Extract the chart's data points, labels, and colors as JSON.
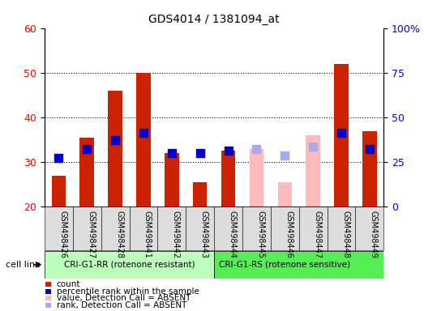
{
  "title": "GDS4014 / 1381094_at",
  "samples": [
    "GSM498426",
    "GSM498427",
    "GSM498428",
    "GSM498441",
    "GSM498442",
    "GSM498443",
    "GSM498444",
    "GSM498445",
    "GSM498446",
    "GSM498447",
    "GSM498448",
    "GSM498449"
  ],
  "group1_label": "CRI-G1-RR (rotenone resistant)",
  "group2_label": "CRI-G1-RS (rotenone sensitive)",
  "cell_line_label": "cell line",
  "count_values": [
    27,
    35.5,
    46,
    50,
    32,
    25.5,
    32.5,
    33,
    25.5,
    36,
    52,
    37
  ],
  "rank_values": [
    31,
    33,
    35,
    36.5,
    32,
    32,
    32.5,
    33,
    31.5,
    33.5,
    36.5,
    33
  ],
  "absent_flags": [
    false,
    false,
    false,
    false,
    false,
    false,
    false,
    true,
    true,
    true,
    false,
    false
  ],
  "ylim_left": [
    20,
    60
  ],
  "ylim_right": [
    0,
    100
  ],
  "yticks_left": [
    20,
    30,
    40,
    50,
    60
  ],
  "yticks_right": [
    0,
    25,
    50,
    75,
    100
  ],
  "ytick_labels_right": [
    "0",
    "25",
    "50",
    "75",
    "100%"
  ],
  "bar_color_present": "#cc2200",
  "bar_color_absent": "#ffbbbb",
  "rank_color_present": "#0000cc",
  "rank_color_absent": "#aaaaee",
  "group1_bg": "#bbffbb",
  "group2_bg": "#55ee55",
  "tick_bg": "#dddddd",
  "legend_items": [
    {
      "color": "#cc2200",
      "label": "count"
    },
    {
      "color": "#0000cc",
      "label": "percentile rank within the sample"
    },
    {
      "color": "#ffbbbb",
      "label": "value, Detection Call = ABSENT"
    },
    {
      "color": "#aaaaee",
      "label": "rank, Detection Call = ABSENT"
    }
  ],
  "grid_yticks": [
    30,
    40,
    50
  ],
  "bar_width": 0.5,
  "rank_marker_size": 55,
  "n_group1": 6,
  "n_group2": 6
}
